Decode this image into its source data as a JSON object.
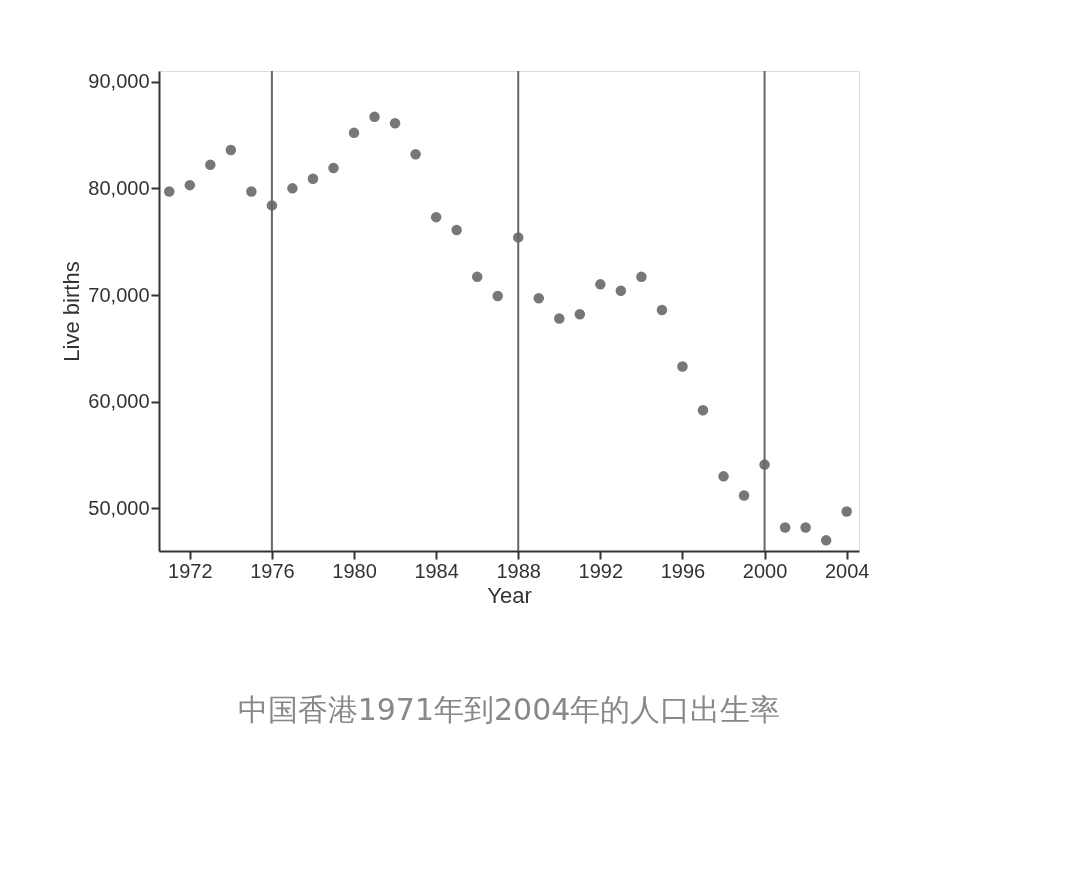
{
  "chart_data": {
    "type": "scatter",
    "xlabel": "Year",
    "ylabel": "Live births",
    "x": [
      1971,
      1972,
      1973,
      1974,
      1975,
      1976,
      1977,
      1978,
      1979,
      1980,
      1981,
      1982,
      1983,
      1984,
      1985,
      1986,
      1987,
      1988,
      1989,
      1990,
      1991,
      1992,
      1993,
      1994,
      1995,
      1996,
      1997,
      1998,
      1999,
      2000,
      2001,
      2002,
      2003,
      2004
    ],
    "series": [
      {
        "color": "#777777",
        "values": [
          79700,
          80300,
          82200,
          83600,
          79700,
          78400,
          80000,
          80900,
          81900,
          85200,
          86700,
          86100,
          83200,
          77300,
          76100,
          71700,
          69900,
          75400,
          69700,
          67800,
          68200,
          71000,
          70400,
          71700,
          68600,
          63300,
          59200,
          53000,
          51200,
          54100,
          48200,
          48200,
          47000,
          49700
        ]
      }
    ],
    "xlim": [
      1970.5,
      2004.6
    ],
    "xticks": [
      1972,
      1976,
      1980,
      1984,
      1988,
      1992,
      1996,
      2000,
      2004
    ],
    "ylim": [
      46000,
      91000
    ],
    "yticks": [
      {
        "value": 50000,
        "label": "50,000"
      },
      {
        "value": 60000,
        "label": "60,000"
      },
      {
        "value": 70000,
        "label": "70,000"
      },
      {
        "value": 80000,
        "label": "80,000"
      },
      {
        "value": 90000,
        "label": "90,000"
      }
    ],
    "ref_lines": [
      {
        "axis": "x",
        "value": 1976,
        "color": "#666666"
      },
      {
        "axis": "x",
        "value": 1988,
        "color": "#666666"
      },
      {
        "axis": "x",
        "value": 2000,
        "color": "#666666"
      }
    ],
    "marker": "circle",
    "annotations": [
      "中国香港1971年到2004年的人口出生率"
    ]
  }
}
